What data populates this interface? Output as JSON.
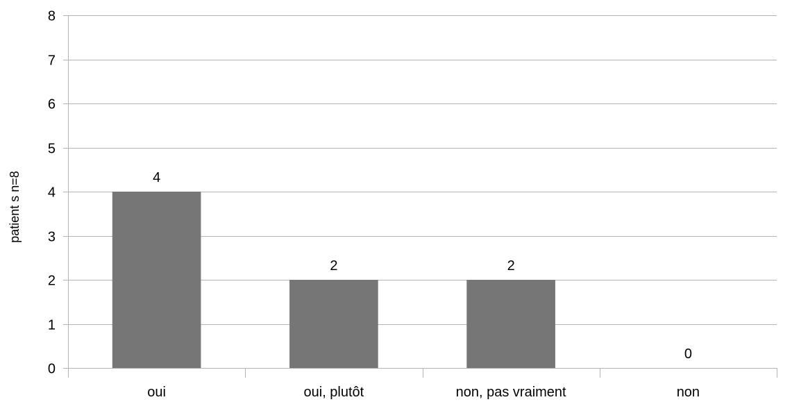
{
  "chart_data": {
    "type": "bar",
    "title": "",
    "xlabel": "",
    "ylabel": "patient s n=8",
    "categories": [
      "oui",
      "oui, plutôt",
      "non, pas vraiment",
      "non"
    ],
    "values": [
      4,
      2,
      2,
      0
    ],
    "data_labels": [
      "4",
      "2",
      "2",
      "0"
    ],
    "ylim": [
      0,
      8
    ],
    "yticks": [
      0,
      1,
      2,
      3,
      4,
      5,
      6,
      7,
      8
    ],
    "grid": true,
    "legend": "none",
    "bar_color": "#767676",
    "grid_color": "#b3b3b3"
  }
}
